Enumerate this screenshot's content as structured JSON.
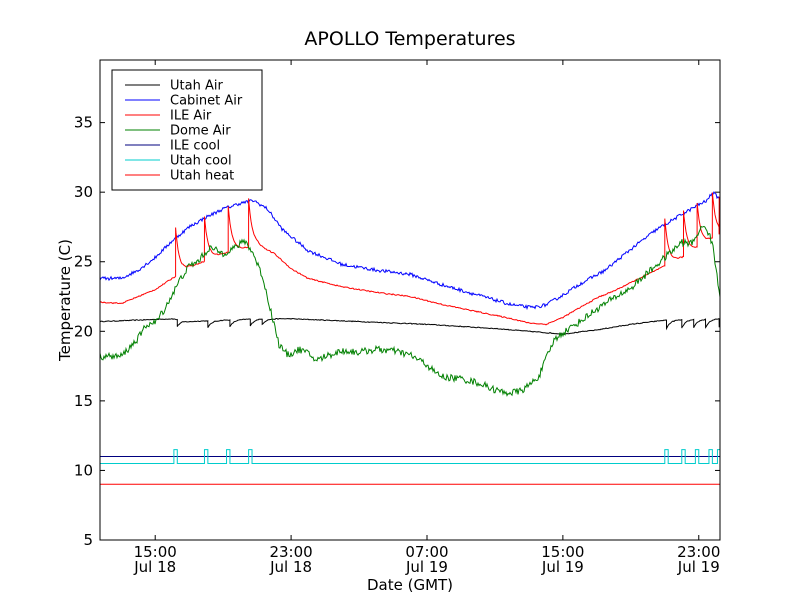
{
  "chart_data": {
    "type": "line",
    "title": "APOLLO Temperatures",
    "xlabel": "Date (GMT)",
    "ylabel": "Temperature (C)",
    "ylim": [
      5,
      39.5
    ],
    "xlim": [
      11.75,
      48.25
    ],
    "x_unit": "hours since Jul 18 00:00 GMT",
    "yticks": [
      5,
      10,
      15,
      20,
      25,
      30,
      35
    ],
    "xticks": [
      {
        "x": 15,
        "line1": "15:00",
        "line2": "Jul 18"
      },
      {
        "x": 23,
        "line1": "23:00",
        "line2": "Jul 18"
      },
      {
        "x": 31,
        "line1": "07:00",
        "line2": "Jul 19"
      },
      {
        "x": 39,
        "line1": "15:00",
        "line2": "Jul 19"
      },
      {
        "x": 47,
        "line1": "23:00",
        "line2": "Jul 19"
      }
    ],
    "legend_position": "top-left",
    "grid": false,
    "series": [
      {
        "name": "Utah Air",
        "color": "#000000",
        "noise": 0.03,
        "points": [
          [
            11.75,
            20.7
          ],
          [
            16,
            20.9
          ],
          [
            17,
            20.7
          ],
          [
            19,
            20.8
          ],
          [
            21,
            20.9
          ],
          [
            23,
            20.9
          ],
          [
            27,
            20.7
          ],
          [
            31,
            20.5
          ],
          [
            35,
            20.2
          ],
          [
            37,
            20.0
          ],
          [
            39,
            19.8
          ],
          [
            41,
            20.1
          ],
          [
            43,
            20.5
          ],
          [
            45,
            20.8
          ],
          [
            48.25,
            20.9
          ]
        ],
        "spikes": [
          [
            16.3,
            -0.5
          ],
          [
            18.1,
            -0.5
          ],
          [
            19.4,
            -0.5
          ],
          [
            20.6,
            -0.5
          ],
          [
            21.3,
            -0.4
          ],
          [
            45.1,
            -0.6
          ],
          [
            46,
            -0.6
          ],
          [
            46.7,
            -0.6
          ],
          [
            47.4,
            -0.6
          ],
          [
            48.2,
            -0.6
          ]
        ]
      },
      {
        "name": "Cabinet Air",
        "color": "#0000ff",
        "noise": 0.12,
        "points": [
          [
            11.75,
            23.8
          ],
          [
            13,
            23.8
          ],
          [
            14,
            24.4
          ],
          [
            15,
            25.3
          ],
          [
            16,
            26.5
          ],
          [
            17,
            27.5
          ],
          [
            18,
            28.2
          ],
          [
            19,
            28.8
          ],
          [
            20,
            29.2
          ],
          [
            20.8,
            29.4
          ],
          [
            21.6,
            28.8
          ],
          [
            22.5,
            27.3
          ],
          [
            24,
            25.8
          ],
          [
            26,
            24.8
          ],
          [
            28,
            24.4
          ],
          [
            30,
            24.1
          ],
          [
            32,
            23.3
          ],
          [
            34,
            22.6
          ],
          [
            36,
            21.9
          ],
          [
            37.2,
            21.7
          ],
          [
            38,
            21.9
          ],
          [
            39,
            22.6
          ],
          [
            40,
            23.4
          ],
          [
            41.5,
            24.4
          ],
          [
            43,
            25.9
          ],
          [
            44.5,
            27.3
          ],
          [
            46,
            28.4
          ],
          [
            47,
            29.1
          ],
          [
            47.5,
            29.4
          ],
          [
            47.8,
            30.0
          ],
          [
            48.25,
            29.5
          ]
        ],
        "spikes": []
      },
      {
        "name": "ILE Air",
        "color": "#ff0000",
        "noise": 0.04,
        "points": [
          [
            11.75,
            22.1
          ],
          [
            13,
            22.0
          ],
          [
            14,
            22.5
          ],
          [
            15,
            23.0
          ],
          [
            16,
            23.8
          ],
          [
            17,
            24.6
          ],
          [
            18,
            25.1
          ],
          [
            19,
            25.6
          ],
          [
            20,
            25.9
          ],
          [
            21,
            26.2
          ],
          [
            22,
            25.6
          ],
          [
            23,
            24.5
          ],
          [
            24,
            23.8
          ],
          [
            26,
            23.2
          ],
          [
            28,
            22.8
          ],
          [
            30,
            22.5
          ],
          [
            32,
            21.9
          ],
          [
            34,
            21.4
          ],
          [
            36,
            20.9
          ],
          [
            37,
            20.6
          ],
          [
            38,
            20.5
          ],
          [
            39,
            21.0
          ],
          [
            40,
            21.7
          ],
          [
            41,
            22.4
          ],
          [
            42,
            22.9
          ],
          [
            43,
            23.5
          ],
          [
            44,
            24.1
          ],
          [
            45,
            24.7
          ],
          [
            46,
            25.3
          ],
          [
            47,
            26.1
          ],
          [
            48.25,
            27.0
          ]
        ],
        "spikes": [
          [
            16.2,
            3.5
          ],
          [
            17.9,
            3.2
          ],
          [
            19.3,
            3.3
          ],
          [
            20.5,
            3.5
          ],
          [
            45,
            3.4
          ],
          [
            46.1,
            3.3
          ],
          [
            46.9,
            3.2
          ],
          [
            47.8,
            3.3
          ],
          [
            48.2,
            2.7
          ]
        ]
      },
      {
        "name": "Dome Air",
        "color": "#008000",
        "noise": 0.25,
        "points": [
          [
            11.75,
            18.2
          ],
          [
            13,
            18.2
          ],
          [
            14,
            19.5
          ],
          [
            14.5,
            20.5
          ],
          [
            15,
            20.6
          ],
          [
            15.6,
            21.7
          ],
          [
            16.5,
            23.8
          ],
          [
            17,
            24.7
          ],
          [
            17.5,
            25.0
          ],
          [
            18.2,
            26.0
          ],
          [
            19,
            25.6
          ],
          [
            19.8,
            26.1
          ],
          [
            20.3,
            26.5
          ],
          [
            20.8,
            25.5
          ],
          [
            21.3,
            24.0
          ],
          [
            21.8,
            21.5
          ],
          [
            22.3,
            19.0
          ],
          [
            22.8,
            18.3
          ],
          [
            23.5,
            18.7
          ],
          [
            24,
            18.4
          ],
          [
            24.5,
            17.9
          ],
          [
            25,
            18.2
          ],
          [
            26,
            18.6
          ],
          [
            27,
            18.5
          ],
          [
            28,
            18.7
          ],
          [
            29,
            18.6
          ],
          [
            30,
            18.3
          ],
          [
            31,
            17.6
          ],
          [
            31.5,
            17.0
          ],
          [
            32,
            16.7
          ],
          [
            33,
            16.6
          ],
          [
            34,
            16.3
          ],
          [
            35,
            15.8
          ],
          [
            35.5,
            15.6
          ],
          [
            36,
            15.6
          ],
          [
            36.5,
            15.7
          ],
          [
            37,
            16.1
          ],
          [
            37.6,
            16.8
          ],
          [
            38,
            18.0
          ],
          [
            38.5,
            19.4
          ],
          [
            39,
            19.9
          ],
          [
            40,
            20.7
          ],
          [
            41,
            21.6
          ],
          [
            42,
            22.4
          ],
          [
            43,
            23.1
          ],
          [
            44,
            24.2
          ],
          [
            45,
            25.3
          ],
          [
            46,
            26.4
          ],
          [
            46.6,
            26.3
          ],
          [
            47,
            27.2
          ],
          [
            47.4,
            27.6
          ],
          [
            47.8,
            26.3
          ],
          [
            48.25,
            22.5
          ]
        ],
        "spikes": []
      },
      {
        "name": "ILE cool",
        "color": "#00007f",
        "noise": 0,
        "points": [
          [
            11.75,
            11.0
          ],
          [
            48.25,
            11.0
          ]
        ],
        "spikes": []
      },
      {
        "name": "Utah cool",
        "color": "#00cccc",
        "noise": 0,
        "points": [
          [
            11.75,
            10.5
          ],
          [
            48.25,
            10.5
          ]
        ],
        "pulses": [
          [
            16.1,
            16.3
          ],
          [
            17.9,
            18.1
          ],
          [
            19.2,
            19.4
          ],
          [
            20.5,
            20.7
          ],
          [
            45.0,
            45.2
          ],
          [
            46.0,
            46.2
          ],
          [
            46.8,
            47.0
          ],
          [
            47.6,
            47.8
          ],
          [
            48.1,
            48.25
          ]
        ],
        "pulse_high": 11.5,
        "spikes": []
      },
      {
        "name": "Utah heat",
        "color": "#ff0000",
        "noise": 0,
        "points": [
          [
            11.75,
            9.0
          ],
          [
            48.25,
            9.0
          ]
        ],
        "spikes": []
      }
    ]
  }
}
